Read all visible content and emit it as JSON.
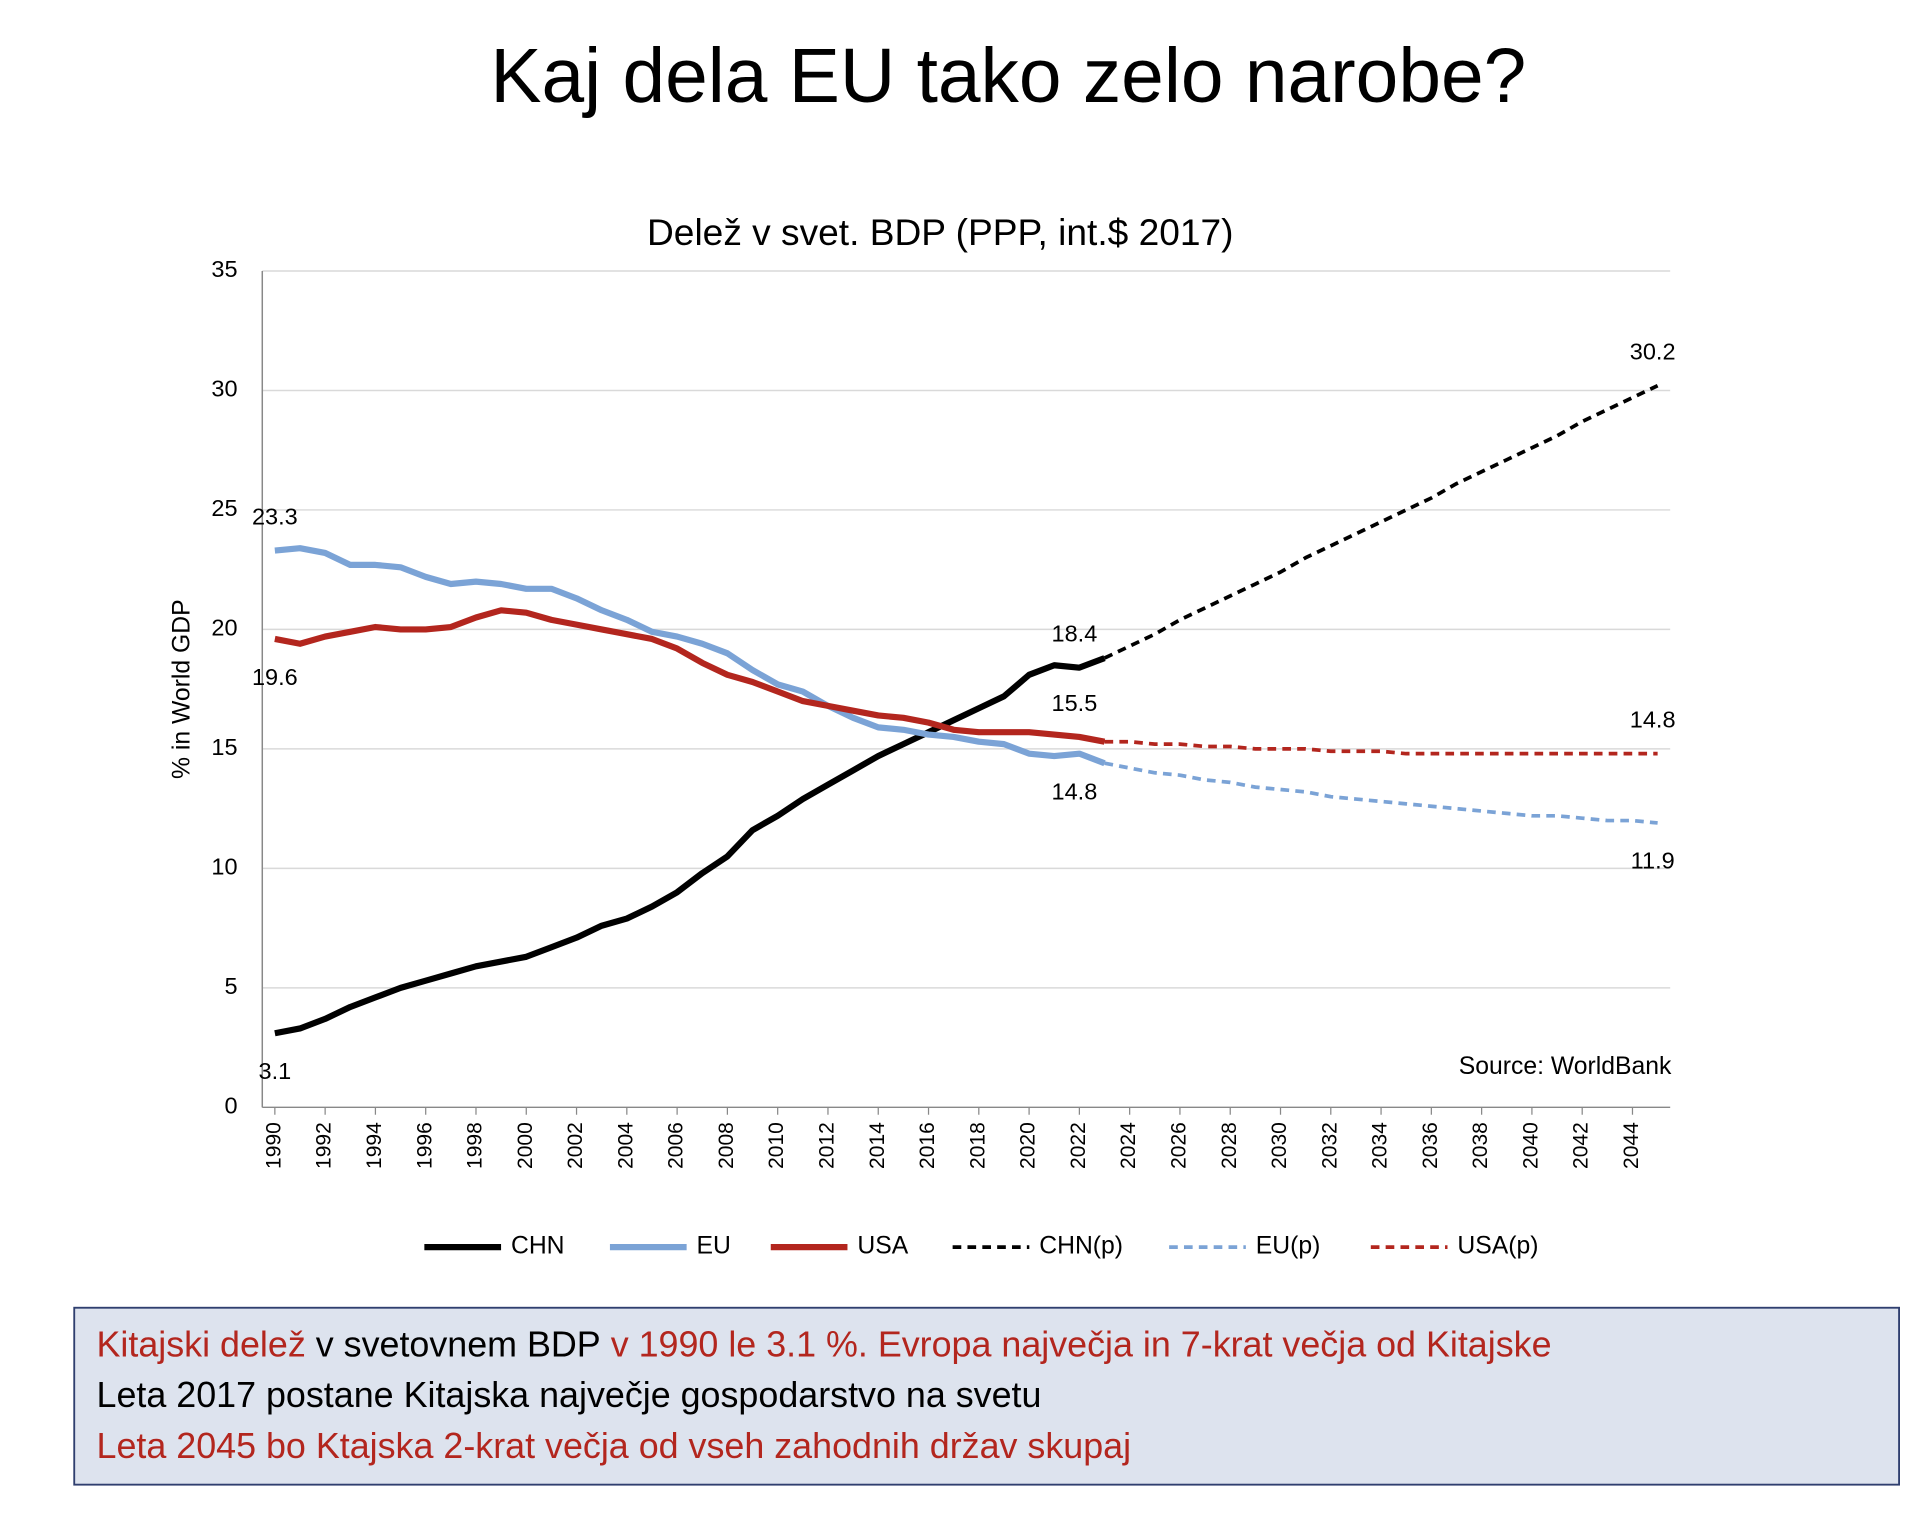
{
  "header": {
    "title": "Kaj dela EU tako zelo narobe?"
  },
  "chart_data": {
    "type": "line",
    "title": "Delež v svet. BDP (PPP, int.$ 2017)",
    "y_label": "% in World GDP",
    "source": "Source: WorldBank",
    "x": [
      1990,
      1991,
      1992,
      1993,
      1994,
      1995,
      1996,
      1997,
      1998,
      1999,
      2000,
      2001,
      2002,
      2003,
      2004,
      2005,
      2006,
      2007,
      2008,
      2009,
      2010,
      2011,
      2012,
      2013,
      2014,
      2015,
      2016,
      2017,
      2018,
      2019,
      2020,
      2021,
      2022,
      2023,
      2024,
      2025,
      2026,
      2027,
      2028,
      2029,
      2030,
      2031,
      2032,
      2033,
      2034,
      2035,
      2036,
      2037,
      2038,
      2039,
      2040,
      2041,
      2042,
      2043,
      2044,
      2045
    ],
    "xlim": [
      1989.5,
      2045.5
    ],
    "xticks": [
      1990,
      1992,
      1994,
      1996,
      1998,
      2000,
      2002,
      2004,
      2006,
      2008,
      2010,
      2012,
      2014,
      2016,
      2018,
      2020,
      2022,
      2024,
      2026,
      2028,
      2030,
      2032,
      2034,
      2036,
      2038,
      2040,
      2042,
      2044
    ],
    "ylim": [
      0,
      35
    ],
    "yticks": [
      0,
      5,
      10,
      15,
      20,
      25,
      30,
      35
    ],
    "grid": true,
    "series": [
      {
        "name": "CHN",
        "color": "#000000",
        "dash": false,
        "values": [
          3.1,
          3.3,
          3.7,
          4.2,
          4.6,
          5.0,
          5.3,
          5.6,
          5.9,
          6.1,
          6.3,
          6.7,
          7.1,
          7.6,
          7.9,
          8.4,
          9.0,
          9.8,
          10.5,
          11.6,
          12.2,
          12.9,
          13.5,
          14.1,
          14.7,
          15.2,
          15.7,
          16.2,
          16.7,
          17.2,
          18.1,
          18.5,
          18.4,
          18.8,
          null,
          null,
          null,
          null,
          null,
          null,
          null,
          null,
          null,
          null,
          null,
          null,
          null,
          null,
          null,
          null,
          null,
          null,
          null,
          null,
          null,
          null
        ],
        "value_labels": [
          "3.1",
          null,
          null,
          null,
          null,
          null,
          null,
          null,
          null,
          null,
          null,
          null,
          null,
          null,
          null,
          null,
          null,
          null,
          null,
          null,
          null,
          null,
          null,
          null,
          null,
          null,
          null,
          null,
          null,
          null,
          null,
          null,
          "18.4",
          null,
          null,
          null,
          null,
          null,
          null,
          null,
          null,
          null,
          null,
          null,
          null,
          null,
          null,
          null,
          null,
          null,
          null,
          null,
          null,
          null,
          null,
          null
        ]
      },
      {
        "name": "EU",
        "color": "#7ba3d6",
        "dash": false,
        "values": [
          23.3,
          23.4,
          23.2,
          22.7,
          22.7,
          22.6,
          22.2,
          21.9,
          22.0,
          21.9,
          21.7,
          21.7,
          21.3,
          20.8,
          20.4,
          19.9,
          19.7,
          19.4,
          19.0,
          18.3,
          17.7,
          17.4,
          16.8,
          16.3,
          15.9,
          15.8,
          15.6,
          15.5,
          15.3,
          15.2,
          14.8,
          14.7,
          14.8,
          14.4,
          null,
          null,
          null,
          null,
          null,
          null,
          null,
          null,
          null,
          null,
          null,
          null,
          null,
          null,
          null,
          null,
          null,
          null,
          null,
          null,
          null,
          null
        ],
        "value_labels": [
          "23.3",
          null,
          null,
          null,
          null,
          null,
          null,
          null,
          null,
          null,
          null,
          null,
          null,
          null,
          null,
          null,
          null,
          null,
          null,
          null,
          null,
          null,
          null,
          null,
          null,
          null,
          null,
          null,
          null,
          null,
          null,
          null,
          "14.8",
          null,
          null,
          null,
          null,
          null,
          null,
          null,
          null,
          null,
          null,
          null,
          null,
          null,
          null,
          null,
          null,
          null,
          null,
          null,
          null,
          null,
          null,
          null
        ]
      },
      {
        "name": "USA",
        "color": "#b3261e",
        "dash": false,
        "values": [
          19.6,
          19.4,
          19.7,
          19.9,
          20.1,
          20.0,
          20.0,
          20.1,
          20.5,
          20.8,
          20.7,
          20.4,
          20.2,
          20.0,
          19.8,
          19.6,
          19.2,
          18.6,
          18.1,
          17.8,
          17.4,
          17.0,
          16.8,
          16.6,
          16.4,
          16.3,
          16.1,
          15.8,
          15.7,
          15.7,
          15.7,
          15.6,
          15.5,
          15.3,
          null,
          null,
          null,
          null,
          null,
          null,
          null,
          null,
          null,
          null,
          null,
          null,
          null,
          null,
          null,
          null,
          null,
          null,
          null,
          null,
          null,
          null
        ],
        "value_labels": [
          "19.6",
          null,
          null,
          null,
          null,
          null,
          null,
          null,
          null,
          null,
          null,
          null,
          null,
          null,
          null,
          null,
          null,
          null,
          null,
          null,
          null,
          null,
          null,
          null,
          null,
          null,
          null,
          null,
          null,
          null,
          null,
          null,
          "15.5",
          null,
          null,
          null,
          null,
          null,
          null,
          null,
          null,
          null,
          null,
          null,
          null,
          null,
          null,
          null,
          null,
          null,
          null,
          null,
          null,
          null,
          null,
          null
        ]
      },
      {
        "name": "CHN(p)",
        "color": "#000000",
        "dash": true,
        "values": [
          null,
          null,
          null,
          null,
          null,
          null,
          null,
          null,
          null,
          null,
          null,
          null,
          null,
          null,
          null,
          null,
          null,
          null,
          null,
          null,
          null,
          null,
          null,
          null,
          null,
          null,
          null,
          null,
          null,
          null,
          null,
          null,
          null,
          18.8,
          19.3,
          19.8,
          20.4,
          20.9,
          21.4,
          21.9,
          22.4,
          23.0,
          23.5,
          24.0,
          24.5,
          25.0,
          25.5,
          26.1,
          26.6,
          27.1,
          27.6,
          28.1,
          28.7,
          29.2,
          29.7,
          30.2
        ],
        "value_labels": [
          null,
          null,
          null,
          null,
          null,
          null,
          null,
          null,
          null,
          null,
          null,
          null,
          null,
          null,
          null,
          null,
          null,
          null,
          null,
          null,
          null,
          null,
          null,
          null,
          null,
          null,
          null,
          null,
          null,
          null,
          null,
          null,
          null,
          null,
          null,
          null,
          null,
          null,
          null,
          null,
          null,
          null,
          null,
          null,
          null,
          null,
          null,
          null,
          null,
          null,
          null,
          null,
          null,
          null,
          null,
          "30.2"
        ]
      },
      {
        "name": "EU(p)",
        "color": "#7ba3d6",
        "dash": true,
        "values": [
          null,
          null,
          null,
          null,
          null,
          null,
          null,
          null,
          null,
          null,
          null,
          null,
          null,
          null,
          null,
          null,
          null,
          null,
          null,
          null,
          null,
          null,
          null,
          null,
          null,
          null,
          null,
          null,
          null,
          null,
          null,
          null,
          null,
          14.4,
          14.2,
          14.0,
          13.9,
          13.7,
          13.6,
          13.4,
          13.3,
          13.2,
          13.0,
          12.9,
          12.8,
          12.7,
          12.6,
          12.5,
          12.4,
          12.3,
          12.2,
          12.2,
          12.1,
          12.0,
          12.0,
          11.9
        ],
        "value_labels": [
          null,
          null,
          null,
          null,
          null,
          null,
          null,
          null,
          null,
          null,
          null,
          null,
          null,
          null,
          null,
          null,
          null,
          null,
          null,
          null,
          null,
          null,
          null,
          null,
          null,
          null,
          null,
          null,
          null,
          null,
          null,
          null,
          null,
          null,
          null,
          null,
          null,
          null,
          null,
          null,
          null,
          null,
          null,
          null,
          null,
          null,
          null,
          null,
          null,
          null,
          null,
          null,
          null,
          null,
          null,
          "11.9"
        ]
      },
      {
        "name": "USA(p)",
        "color": "#b3261e",
        "dash": true,
        "values": [
          null,
          null,
          null,
          null,
          null,
          null,
          null,
          null,
          null,
          null,
          null,
          null,
          null,
          null,
          null,
          null,
          null,
          null,
          null,
          null,
          null,
          null,
          null,
          null,
          null,
          null,
          null,
          null,
          null,
          null,
          null,
          null,
          null,
          15.3,
          15.3,
          15.2,
          15.2,
          15.1,
          15.1,
          15.0,
          15.0,
          15.0,
          14.9,
          14.9,
          14.9,
          14.8,
          14.8,
          14.8,
          14.8,
          14.8,
          14.8,
          14.8,
          14.8,
          14.8,
          14.8,
          14.8
        ],
        "value_labels": [
          null,
          null,
          null,
          null,
          null,
          null,
          null,
          null,
          null,
          null,
          null,
          null,
          null,
          null,
          null,
          null,
          null,
          null,
          null,
          null,
          null,
          null,
          null,
          null,
          null,
          null,
          null,
          null,
          null,
          null,
          null,
          null,
          null,
          null,
          null,
          null,
          null,
          null,
          null,
          null,
          null,
          null,
          null,
          null,
          null,
          null,
          null,
          null,
          null,
          null,
          null,
          null,
          null,
          null,
          null,
          "14.8"
        ]
      }
    ]
  },
  "note": {
    "lines": [
      [
        {
          "text": "Kitajski delež",
          "color": "#b3261e"
        },
        {
          "text": " v svetovnem BDP",
          "color": "#000000"
        },
        {
          "text": " v 1990 le 3.1 %. Evropa največja in 7-krat večja od Kitajske",
          "color": "#b3261e"
        }
      ],
      [
        {
          "text": "Leta 2017 postane Kitajska največje gospodarstvo na svetu",
          "color": "#000000"
        }
      ],
      [
        {
          "text": "Leta 2045 bo Ktajska 2-krat večja od vseh zahodnih držav skupaj",
          "color": "#b3261e"
        }
      ]
    ]
  }
}
